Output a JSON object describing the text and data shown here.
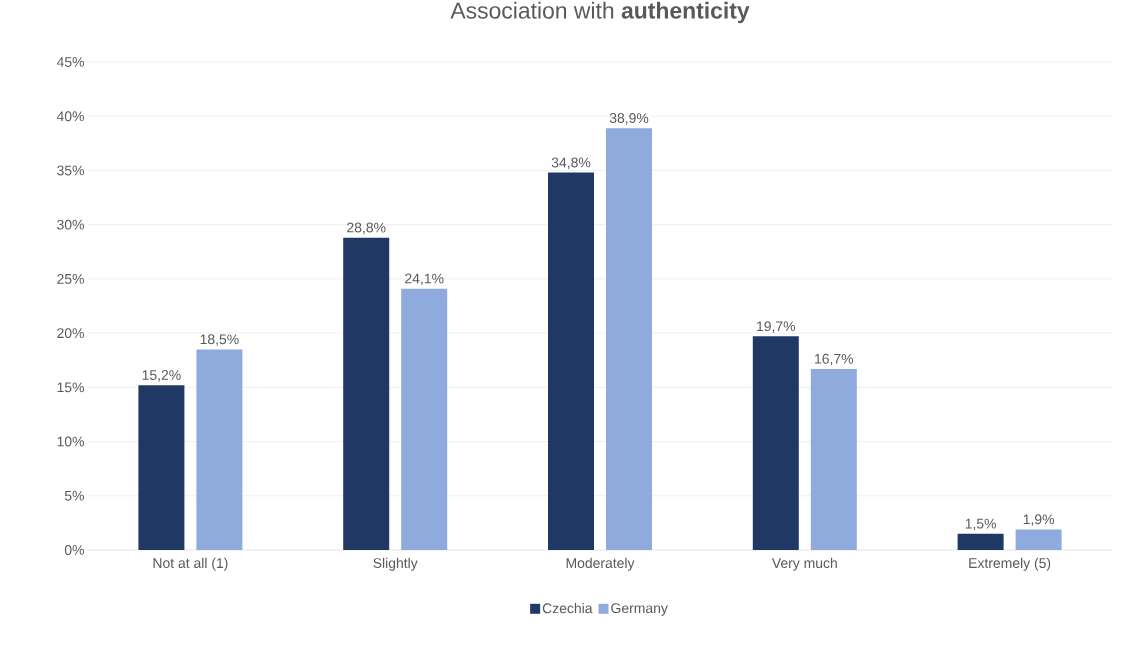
{
  "chart_data": {
    "type": "bar",
    "title": "Association with **authenticity**",
    "categories": [
      "Not at all (1)",
      "Slightly",
      "Moderately",
      "Very much",
      "Extremely (5)"
    ],
    "series": [
      {
        "name": "Czechia",
        "color": "#1f3864",
        "values": [
          15.2,
          28.8,
          34.8,
          19.7,
          1.5
        ],
        "value_labels": [
          "15,2%",
          "28,8%",
          "34,8%",
          "19,7%",
          "1,5%"
        ]
      },
      {
        "name": "Germany",
        "color": "#8faadc",
        "values": [
          18.5,
          24.1,
          38.9,
          16.7,
          1.9
        ],
        "value_labels": [
          "18,5%",
          "24,1%",
          "38,9%",
          "16,7%",
          "1,9%"
        ]
      }
    ],
    "ylim": [
      0,
      45
    ],
    "yticks": [
      {
        "value": 0,
        "label": "0%"
      },
      {
        "value": 5,
        "label": "5%"
      },
      {
        "value": 10,
        "label": "10%"
      },
      {
        "value": 15,
        "label": "15%"
      },
      {
        "value": 20,
        "label": "20%"
      },
      {
        "value": 25,
        "label": "25%"
      },
      {
        "value": 30,
        "label": "30%"
      },
      {
        "value": 35,
        "label": "35%"
      },
      {
        "value": 40,
        "label": "40%"
      },
      {
        "value": 45,
        "label": "45%"
      }
    ],
    "grid": "y",
    "legend": "bottom"
  }
}
